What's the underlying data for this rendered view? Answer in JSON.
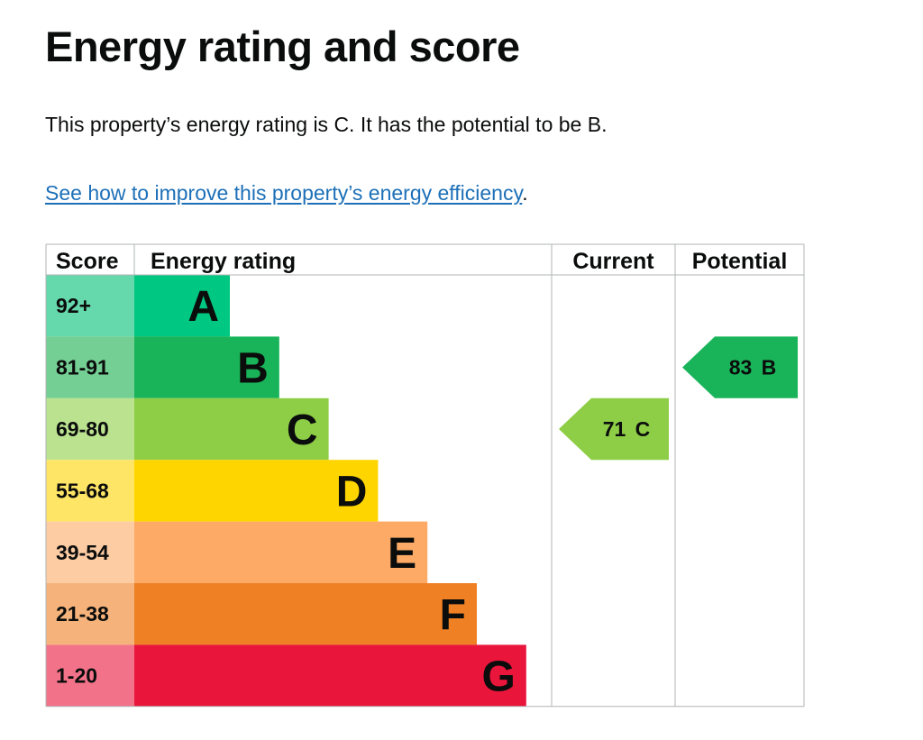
{
  "heading": "Energy rating and score",
  "summary": "This property’s energy rating is C. It has the potential to be B.",
  "link": {
    "text": "See how to improve this property’s energy efficiency",
    "suffix": "."
  },
  "chart_data": {
    "type": "bar",
    "headers": {
      "score": "Score",
      "rating": "Energy rating",
      "current": "Current",
      "potential": "Potential"
    },
    "bands": [
      {
        "band": "A",
        "score_range": "92+",
        "min": 92,
        "max": 100,
        "color": "#00c781",
        "score_bg": "#66d9ac"
      },
      {
        "band": "B",
        "score_range": "81-91",
        "min": 81,
        "max": 91,
        "color": "#19b459",
        "score_bg": "#74cf94"
      },
      {
        "band": "C",
        "score_range": "69-80",
        "min": 69,
        "max": 80,
        "color": "#8dce46",
        "score_bg": "#bbe28f"
      },
      {
        "band": "D",
        "score_range": "55-68",
        "min": 55,
        "max": 68,
        "color": "#ffd500",
        "score_bg": "#ffe566"
      },
      {
        "band": "E",
        "score_range": "39-54",
        "min": 39,
        "max": 54,
        "color": "#fcaa65",
        "score_bg": "#fdcca3"
      },
      {
        "band": "F",
        "score_range": "21-38",
        "min": 21,
        "max": 38,
        "color": "#ef8023",
        "score_bg": "#f5b37b"
      },
      {
        "band": "G",
        "score_range": "1-20",
        "min": 1,
        "max": 20,
        "color": "#e9153b",
        "score_bg": "#f27389"
      }
    ],
    "current": {
      "score": 71,
      "band": "C",
      "label": "71 C",
      "color": "#8dce46"
    },
    "potential": {
      "score": 83,
      "band": "B",
      "label": "83 B",
      "color": "#19b459"
    }
  }
}
